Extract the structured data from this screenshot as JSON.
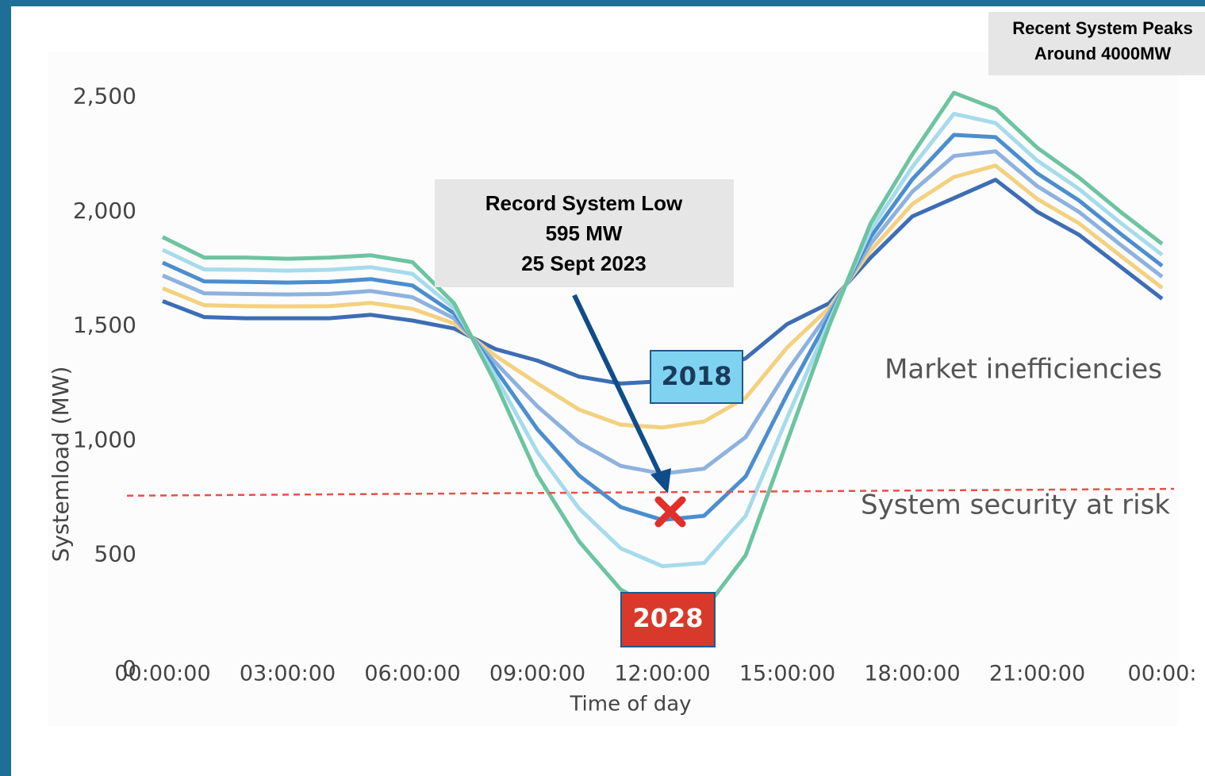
{
  "chart_data": {
    "type": "line",
    "x_label": "Time of day",
    "y_label": "Systemload (MW)",
    "x": [
      0,
      1,
      2,
      3,
      4,
      5,
      6,
      7,
      8,
      9,
      10,
      11,
      12,
      13,
      14,
      15,
      16,
      17,
      18,
      19,
      20,
      21,
      22,
      23,
      24
    ],
    "xlim": [
      0,
      24
    ],
    "xticks": [
      {
        "value": 0,
        "label": "00:00:00"
      },
      {
        "value": 3,
        "label": "03:00:00"
      },
      {
        "value": 6,
        "label": "06:00:00"
      },
      {
        "value": 9,
        "label": "09:00:00"
      },
      {
        "value": 12,
        "label": "12:00:00"
      },
      {
        "value": 15,
        "label": "15:00:00"
      },
      {
        "value": 18,
        "label": "18:00:00"
      },
      {
        "value": 21,
        "label": "21:00:00"
      },
      {
        "value": 24,
        "label": "00:00:"
      }
    ],
    "ylim": [
      0,
      2700
    ],
    "yticks": [
      0,
      500,
      {
        "value": 1000,
        "label": "1,000"
      },
      {
        "value": 1500,
        "label": "1,500"
      },
      {
        "value": 2000,
        "label": "2,000"
      },
      {
        "value": 2500,
        "label": "2,500"
      }
    ],
    "series": [
      {
        "name": "2018",
        "color": "#3d6db5",
        "values": [
          1610,
          1540,
          1535,
          1535,
          1535,
          1550,
          1525,
          1490,
          1400,
          1350,
          1280,
          1250,
          1260,
          1290,
          1360,
          1510,
          1600,
          1800,
          1980,
          2060,
          2140,
          2000,
          1900,
          1760,
          1620
        ]
      },
      {
        "color": "#f3d17e",
        "values": [
          1666,
          1592,
          1588,
          1587,
          1588,
          1602,
          1576,
          1512,
          1370,
          1250,
          1136,
          1070,
          1058,
          1084,
          1188,
          1408,
          1580,
          1830,
          2034,
          2152,
          2202,
          2056,
          1950,
          1808,
          1668
        ]
      },
      {
        "color": "#8eb2df",
        "values": [
          1722,
          1644,
          1641,
          1639,
          1641,
          1654,
          1627,
          1534,
          1340,
          1150,
          992,
          890,
          856,
          878,
          1016,
          1306,
          1560,
          1860,
          2088,
          2244,
          2264,
          2112,
          2000,
          1856,
          1716
        ]
      },
      {
        "color": "#4b8ecf",
        "values": [
          1778,
          1696,
          1694,
          1691,
          1694,
          1706,
          1678,
          1556,
          1310,
          1050,
          848,
          710,
          654,
          672,
          844,
          1204,
          1540,
          1890,
          2142,
          2336,
          2326,
          2168,
          2050,
          1904,
          1764
        ]
      },
      {
        "color": "#a6dbec",
        "values": [
          1834,
          1748,
          1747,
          1743,
          1747,
          1758,
          1729,
          1578,
          1280,
          950,
          704,
          530,
          452,
          466,
          672,
          1102,
          1520,
          1920,
          2196,
          2428,
          2388,
          2224,
          2100,
          1952,
          1812
        ]
      },
      {
        "name": "2028",
        "color": "#6cc4a1",
        "values": [
          1890,
          1800,
          1800,
          1795,
          1800,
          1810,
          1780,
          1600,
          1250,
          850,
          560,
          350,
          250,
          260,
          500,
          1000,
          1500,
          1950,
          2250,
          2520,
          2450,
          2280,
          2150,
          2000,
          1860
        ]
      }
    ],
    "threshold": {
      "values": [
        760,
        790
      ],
      "color": "#e8504a"
    },
    "annotations": [
      "Market inefficiencies",
      "System security at risk"
    ],
    "record_low": [
      "Record System Low",
      "595 MW",
      "25 Sept 2023"
    ],
    "peaks_note": [
      "Recent System Peaks",
      "Around 4000MW"
    ]
  }
}
